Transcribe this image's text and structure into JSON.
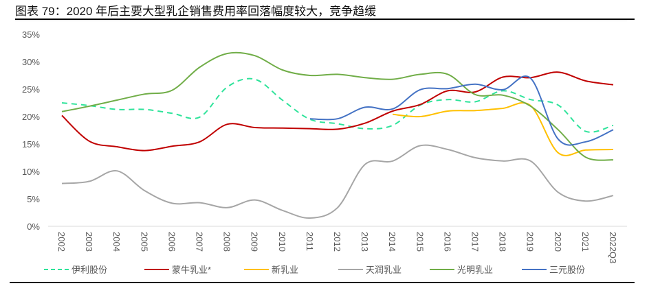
{
  "title": "图表 79：2020 年后主要大型乳企销售费用率回落幅度较大，竞争趋缓",
  "chart_data": {
    "type": "line",
    "title": "",
    "xlabel": "",
    "ylabel": "",
    "ylim": [
      0,
      35
    ],
    "yticks": [
      "0%",
      "5%",
      "10%",
      "15%",
      "20%",
      "25%",
      "30%",
      "35%"
    ],
    "ytick_values": [
      0,
      5,
      10,
      15,
      20,
      25,
      30,
      35
    ],
    "categories": [
      "2002",
      "2003",
      "2004",
      "2005",
      "2006",
      "2007",
      "2008",
      "2009",
      "2010",
      "2011",
      "2012",
      "2013",
      "2014",
      "2015",
      "2016",
      "2017",
      "2018",
      "2019",
      "2020",
      "2021",
      "2022Q3"
    ],
    "grid": false,
    "smooth": true,
    "legend_position": "bottom",
    "series": [
      {
        "name": "伊利股份",
        "color": "#2EE39A",
        "dashed": true,
        "values": [
          22.5,
          22.0,
          21.3,
          21.3,
          20.6,
          19.9,
          25.4,
          26.8,
          23.0,
          19.5,
          18.7,
          17.8,
          18.4,
          22.1,
          23.1,
          22.7,
          24.7,
          23.1,
          22.1,
          17.3,
          18.4
        ]
      },
      {
        "name": "蒙牛乳业*",
        "color": "#C00000",
        "dashed": false,
        "values": [
          20.2,
          15.5,
          14.5,
          13.8,
          14.6,
          15.4,
          18.6,
          18.0,
          17.9,
          17.8,
          17.7,
          18.8,
          21.0,
          22.2,
          24.7,
          24.5,
          27.2,
          27.1,
          28.1,
          26.5,
          25.8
        ]
      },
      {
        "name": "新乳业",
        "color": "#FFC000",
        "dashed": false,
        "values": [
          null,
          null,
          null,
          null,
          null,
          null,
          null,
          null,
          null,
          null,
          null,
          null,
          20.4,
          20.0,
          21.0,
          21.1,
          21.5,
          22.0,
          13.4,
          13.9,
          14.0
        ]
      },
      {
        "name": "天润乳业",
        "color": "#A6A6A6",
        "dashed": false,
        "values": [
          7.8,
          8.2,
          10.1,
          6.5,
          4.2,
          4.3,
          3.4,
          4.8,
          2.9,
          1.5,
          3.4,
          11.3,
          11.9,
          14.7,
          14.0,
          12.5,
          11.9,
          11.9,
          6.2,
          4.6,
          5.6
        ]
      },
      {
        "name": "光明乳业",
        "color": "#70AD47",
        "dashed": false,
        "values": [
          20.9,
          21.9,
          23.0,
          24.1,
          24.8,
          29.0,
          31.5,
          31.1,
          28.5,
          27.5,
          27.7,
          27.1,
          26.8,
          27.7,
          27.7,
          24.0,
          23.9,
          21.9,
          17.6,
          12.6,
          12.1
        ]
      },
      {
        "name": "三元股份",
        "color": "#4472C4",
        "dashed": false,
        "values": [
          null,
          null,
          null,
          null,
          null,
          null,
          null,
          null,
          null,
          19.6,
          19.6,
          21.7,
          21.4,
          24.9,
          25.1,
          25.9,
          24.9,
          27.0,
          15.9,
          15.4,
          17.6
        ]
      }
    ]
  }
}
